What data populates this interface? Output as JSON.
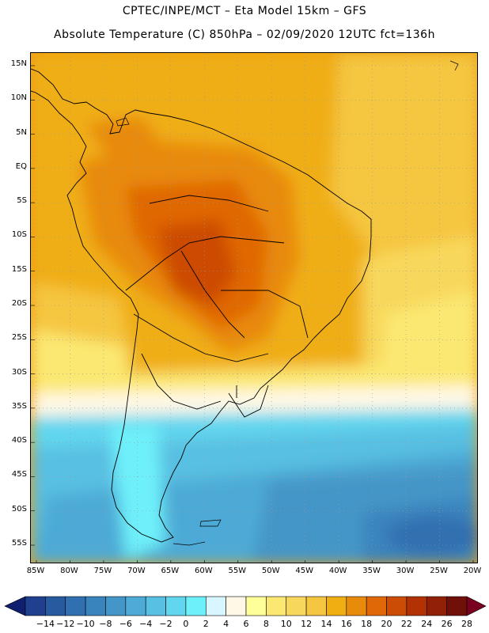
{
  "header": {
    "line1": "CPTEC/INPE/MCT –  Eta Model 15km – GFS",
    "line2": "Absolute Temperature (C) 850hPa – 02/09/2020 12UTC fct=136h"
  },
  "axes": {
    "lat_labels": [
      "15N",
      "10N",
      "5N",
      "EQ",
      "5S",
      "10S",
      "15S",
      "20S",
      "25S",
      "30S",
      "35S",
      "40S",
      "45S",
      "50S",
      "55S"
    ],
    "lat_values": [
      15,
      10,
      5,
      0,
      -5,
      -10,
      -15,
      -20,
      -25,
      -30,
      -35,
      -40,
      -45,
      -50,
      -55
    ],
    "lon_labels": [
      "85W",
      "80W",
      "75W",
      "70W",
      "65W",
      "60W",
      "55W",
      "50W",
      "45W",
      "40W",
      "35W",
      "30W",
      "25W",
      "20W"
    ],
    "lon_values": [
      -85,
      -80,
      -75,
      -70,
      -65,
      -60,
      -55,
      -50,
      -45,
      -40,
      -35,
      -30,
      -25,
      -20
    ]
  },
  "colorbar": {
    "labels": [
      "-14",
      "-12",
      "-10",
      "-8",
      "-6",
      "-4",
      "-2",
      "0",
      "2",
      "4",
      "6",
      "8",
      "10",
      "12",
      "14",
      "16",
      "18",
      "20",
      "22",
      "24",
      "26",
      "28"
    ],
    "colors": [
      "#1f3f8f",
      "#285aa0",
      "#3070b0",
      "#3a84bd",
      "#4496c8",
      "#4eaad6",
      "#58c0e2",
      "#62d6ee",
      "#6ef0fa",
      "#d8f6ff",
      "#fff8e6",
      "#ffff99",
      "#fbe872",
      "#f8d85c",
      "#f5c640",
      "#f0ae12",
      "#e88a0a",
      "#e06806",
      "#cc4c06",
      "#b23206",
      "#922006",
      "#701008"
    ],
    "under_color": "#101f6f",
    "over_color": "#7a0020"
  }
}
